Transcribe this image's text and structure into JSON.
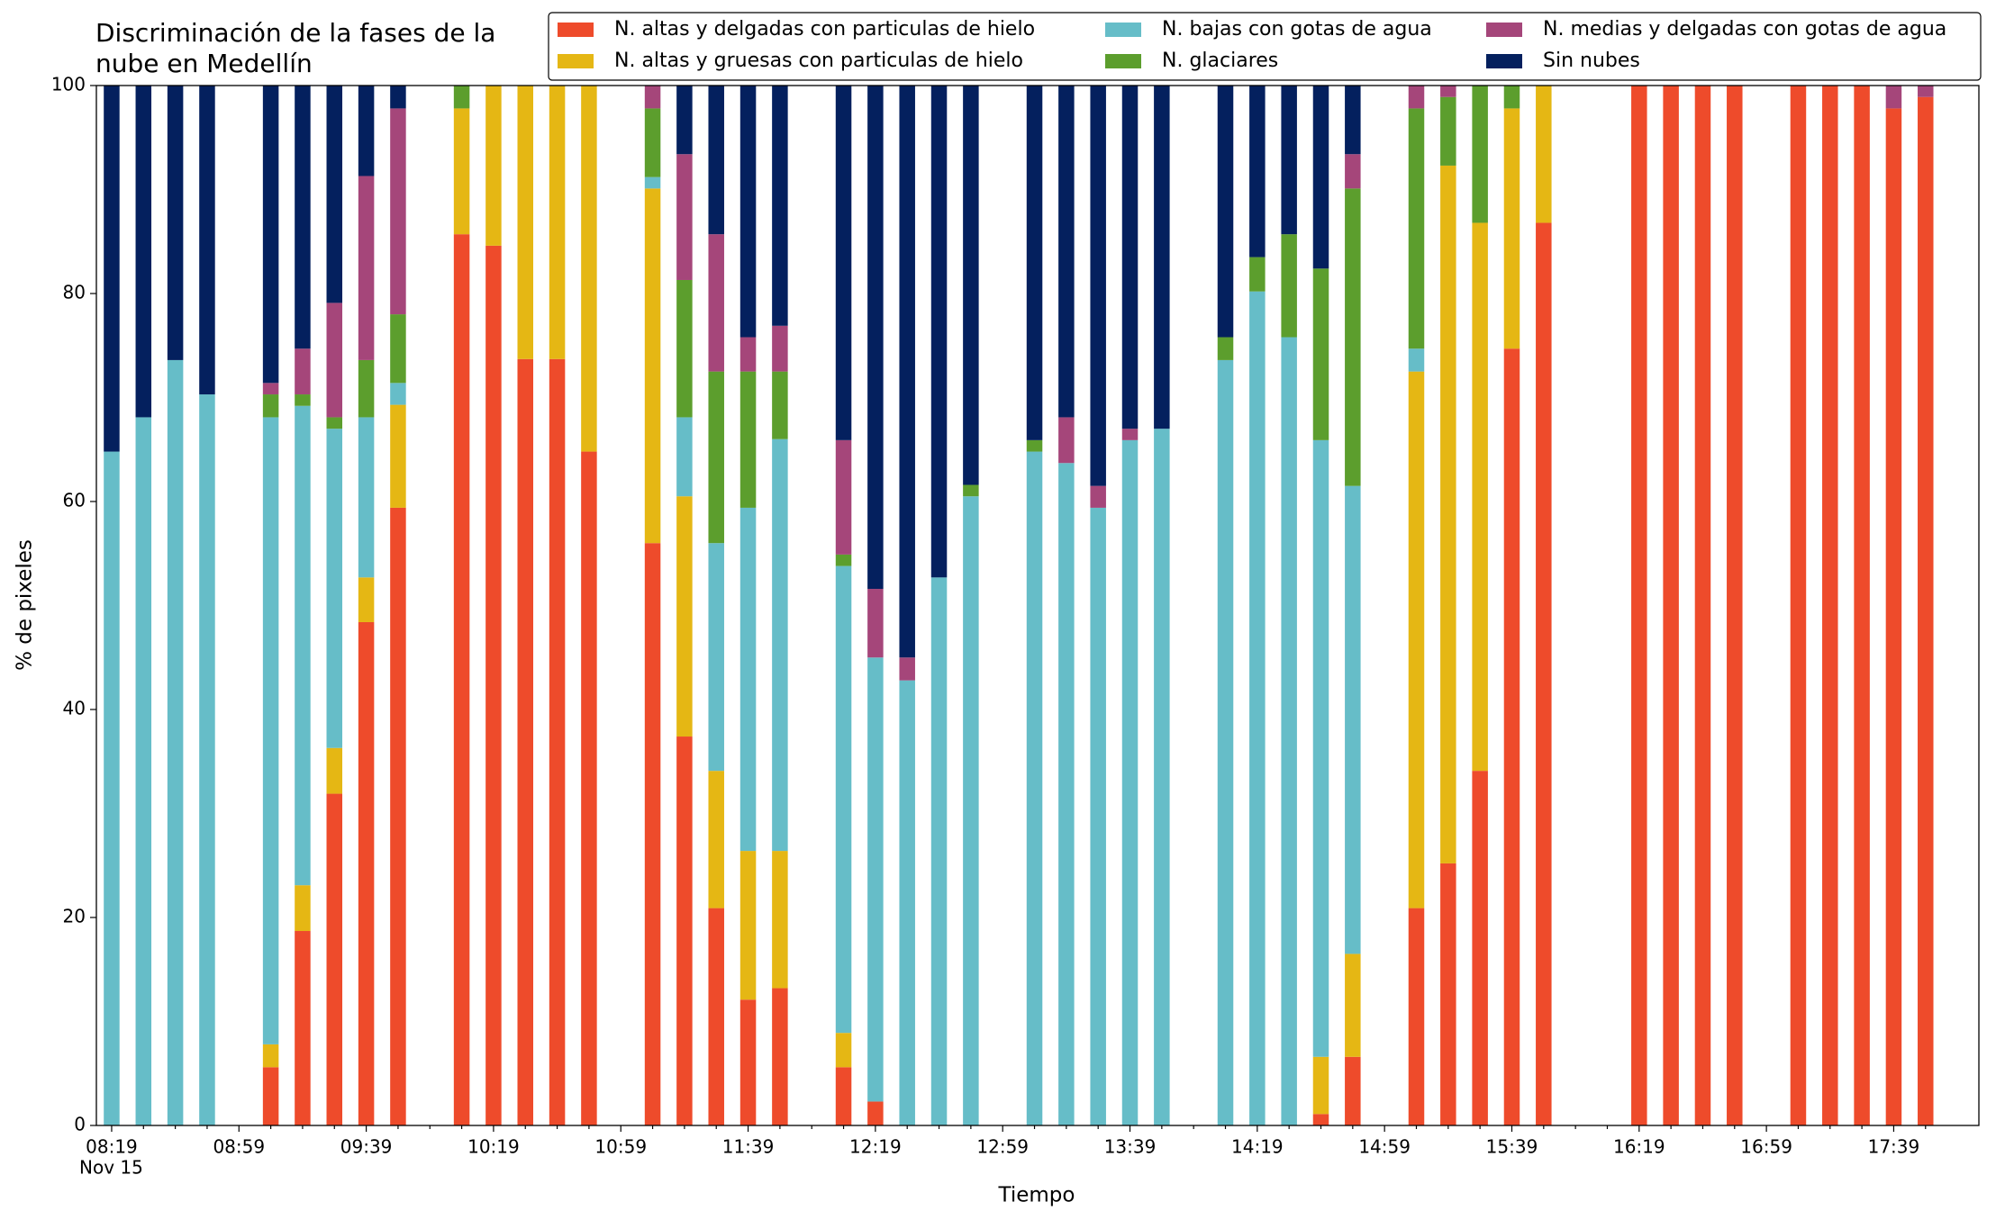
{
  "chart_data": {
    "type": "stacked_bar",
    "title": "Discriminación de la fases de la nube en Medellín",
    "xlabel": "Tiempo",
    "ylabel": "% de pixeles",
    "x_date_label": "Nov 15",
    "categories": [
      "08:19",
      null,
      null,
      null,
      "08:59",
      null,
      null,
      null,
      "09:39",
      null,
      null,
      null,
      "10:19",
      null,
      null,
      null,
      "10:59",
      null,
      null,
      null,
      "11:39",
      null,
      null,
      null,
      "12:19",
      null,
      null,
      null,
      "12:59",
      null,
      null,
      null,
      "13:39",
      null,
      null,
      null,
      "14:19",
      null,
      null,
      null,
      "14:59",
      null,
      null,
      null,
      "15:39",
      null,
      null,
      null,
      "16:19",
      null,
      null,
      null,
      "16:59",
      null,
      null,
      null,
      "17:39",
      null
    ],
    "ylim": [
      0,
      100
    ],
    "yticks": [
      0,
      20,
      40,
      60,
      80,
      100
    ],
    "legend": "top-right",
    "series": [
      {
        "name": "N. altas y delgadas con particulas de hielo",
        "color": "#ee4b2b",
        "values": [
          0,
          0,
          0,
          0,
          null,
          5.6,
          18.7,
          31.9,
          48.4,
          59.4,
          null,
          85.7,
          84.6,
          73.7,
          73.7,
          64.8,
          null,
          56.0,
          37.4,
          20.9,
          12.1,
          13.2,
          null,
          5.6,
          2.3,
          0,
          0,
          0,
          null,
          0,
          0,
          0,
          0,
          0,
          null,
          0,
          0,
          0,
          1.1,
          6.6,
          null,
          20.9,
          25.2,
          34.1,
          74.7,
          86.8,
          null,
          null,
          100,
          100,
          100,
          100,
          null,
          100,
          100,
          100,
          97.8,
          98.9
        ]
      },
      {
        "name": "N. altas y gruesas con particulas de hielo",
        "color": "#e5b714",
        "values": [
          0,
          0,
          0,
          0,
          null,
          2.2,
          4.4,
          4.4,
          4.3,
          9.9,
          null,
          12.1,
          15.4,
          26.3,
          26.3,
          35.2,
          null,
          34.1,
          23.1,
          13.2,
          14.3,
          13.2,
          null,
          3.3,
          0,
          0,
          0,
          0,
          null,
          0,
          0,
          0,
          0,
          0,
          null,
          0,
          0,
          0,
          5.5,
          9.9,
          null,
          51.6,
          67.1,
          52.7,
          23.1,
          13.2,
          null,
          null,
          0,
          0,
          0,
          0,
          null,
          0,
          0,
          0,
          0,
          0
        ]
      },
      {
        "name": "N. bajas con gotas de agua",
        "color": "#66bdc8",
        "values": [
          64.8,
          68.1,
          73.6,
          70.3,
          null,
          60.3,
          46.1,
          30.7,
          15.4,
          2.1,
          null,
          0,
          0,
          0,
          0,
          0,
          null,
          1.1,
          7.6,
          21.9,
          33.0,
          39.6,
          null,
          44.9,
          42.7,
          42.8,
          52.7,
          60.5,
          null,
          64.8,
          63.7,
          59.4,
          65.9,
          67.0,
          null,
          73.6,
          80.2,
          75.8,
          59.3,
          45.0,
          null,
          2.2,
          0,
          0,
          0,
          0,
          null,
          null,
          0,
          0,
          0,
          0,
          null,
          0,
          0,
          0,
          0,
          0
        ]
      },
      {
        "name": "N. glaciares",
        "color": "#5c9e2d",
        "values": [
          0,
          0,
          0,
          0,
          null,
          2.2,
          1.1,
          1.1,
          5.5,
          6.6,
          null,
          2.2,
          0,
          0,
          0,
          0,
          null,
          6.6,
          13.2,
          16.5,
          13.1,
          6.5,
          null,
          1.1,
          0,
          0,
          0,
          1.1,
          null,
          1.1,
          0,
          0,
          0,
          0,
          null,
          2.2,
          3.3,
          9.9,
          16.5,
          28.6,
          null,
          23.1,
          6.6,
          13.2,
          2.2,
          0,
          null,
          null,
          0,
          0,
          0,
          0,
          null,
          0,
          0,
          0,
          0,
          0
        ]
      },
      {
        "name": "N. medias y delgadas con gotas de agua",
        "color": "#a5467a",
        "values": [
          0,
          0,
          0,
          0,
          null,
          1.1,
          4.4,
          11.0,
          17.7,
          19.8,
          null,
          0,
          0,
          0,
          0,
          0,
          null,
          2.2,
          12.1,
          13.2,
          3.3,
          4.4,
          null,
          11.0,
          6.6,
          2.2,
          0,
          0,
          null,
          0,
          4.4,
          2.1,
          1.1,
          0,
          null,
          0,
          0,
          0,
          0,
          3.3,
          null,
          2.2,
          1.1,
          0,
          0,
          0,
          null,
          null,
          0,
          0,
          0,
          0,
          null,
          0,
          0,
          0,
          2.2,
          1.1
        ]
      },
      {
        "name": "Sin nubes",
        "color": "#04205e",
        "values": [
          35.2,
          31.9,
          26.4,
          29.7,
          null,
          28.6,
          25.3,
          20.9,
          8.7,
          2.2,
          null,
          0,
          0,
          0,
          0,
          0,
          null,
          0,
          6.6,
          14.3,
          24.2,
          23.1,
          null,
          34.1,
          48.4,
          55.0,
          47.3,
          38.4,
          null,
          34.1,
          31.9,
          38.5,
          33.0,
          33.0,
          null,
          24.2,
          16.5,
          14.3,
          17.6,
          6.6,
          null,
          0,
          0,
          0,
          0,
          0,
          null,
          null,
          0,
          0,
          0,
          0,
          null,
          0,
          0,
          0,
          0,
          0
        ]
      }
    ]
  }
}
